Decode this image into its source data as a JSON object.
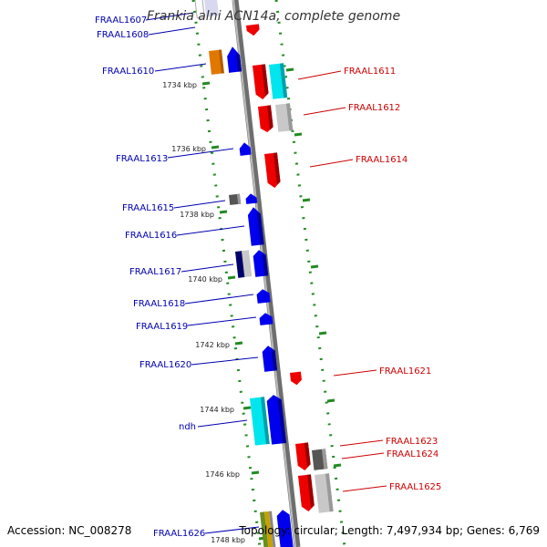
{
  "title": "Frankia alni ACN14a, complete genome",
  "footer": {
    "accession": "Accession: NC_008278",
    "topology": "Topology: circular; Length: 7,497,934 bp; Genes: 6,769"
  },
  "scale_labels": [
    "1734 kbp",
    "1736 kbp",
    "1738 kbp",
    "1740 kbp",
    "1742 kbp",
    "1744 kbp",
    "1746 kbp",
    "1748 kbp"
  ],
  "genes_left": [
    "FRAAL1607",
    "FRAAL1608",
    "FRAAL1610",
    "FRAAL1613",
    "FRAAL1615",
    "FRAAL1616",
    "FRAAL1617",
    "FRAAL1618",
    "FRAAL1619",
    "FRAAL1620",
    "ndh",
    "FRAAL1626"
  ],
  "genes_right": [
    "FRAAL1611",
    "FRAAL1612",
    "FRAAL1614",
    "FRAAL1621",
    "FRAAL1623",
    "FRAAL1624",
    "FRAAL1625"
  ],
  "colors": {
    "forward_label": "#0000b0",
    "reverse_label": "#cc0000",
    "backbone": "#8a8a8a",
    "scale_dots": "#228b22",
    "forward_gene": "#0000ee",
    "reverse_gene": "#ee0000"
  }
}
